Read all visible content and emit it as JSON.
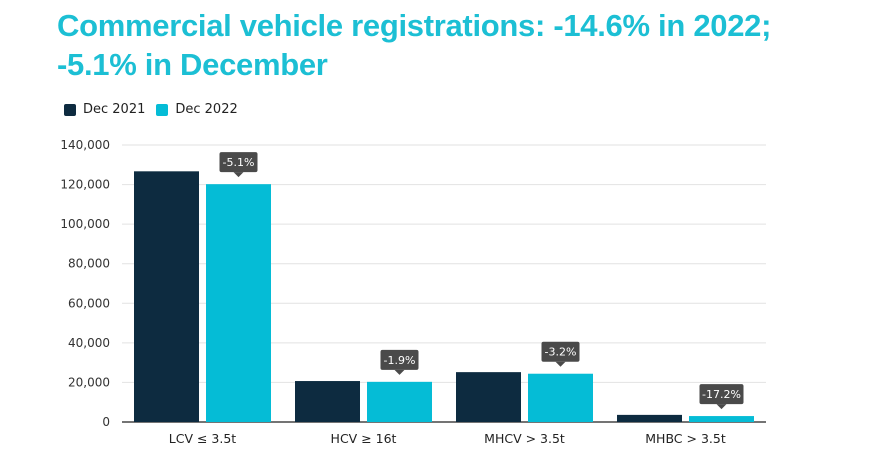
{
  "chart_data": {
    "type": "bar",
    "title": "Commercial vehicle registrations: -14.6% in 2022; -5.1% in December",
    "xlabel": "",
    "ylabel": "",
    "categories": [
      "LCV ≤ 3.5t",
      "HCV ≥ 16t",
      "MHCV > 3.5t",
      "MHBC > 3.5t"
    ],
    "series": [
      {
        "name": "Dec 2021",
        "color": "#0d2b40",
        "values": [
          126700,
          20700,
          25200,
          3600
        ]
      },
      {
        "name": "Dec 2022",
        "color": "#05bcd6",
        "values": [
          120200,
          20300,
          24400,
          3000
        ]
      }
    ],
    "annotations": [
      "-5.1%",
      "-1.9%",
      "-3.2%",
      "-17.2%"
    ],
    "annotation_color": "#4a4a4a",
    "ylim": [
      0,
      140000
    ],
    "yticks": [
      0,
      20000,
      40000,
      60000,
      80000,
      100000,
      120000,
      140000
    ],
    "ytick_labels": [
      "0",
      "20,000",
      "40,000",
      "60,000",
      "80,000",
      "100,000",
      "120,000",
      "140,000"
    ],
    "grid": true,
    "legend_position": "top-left"
  }
}
